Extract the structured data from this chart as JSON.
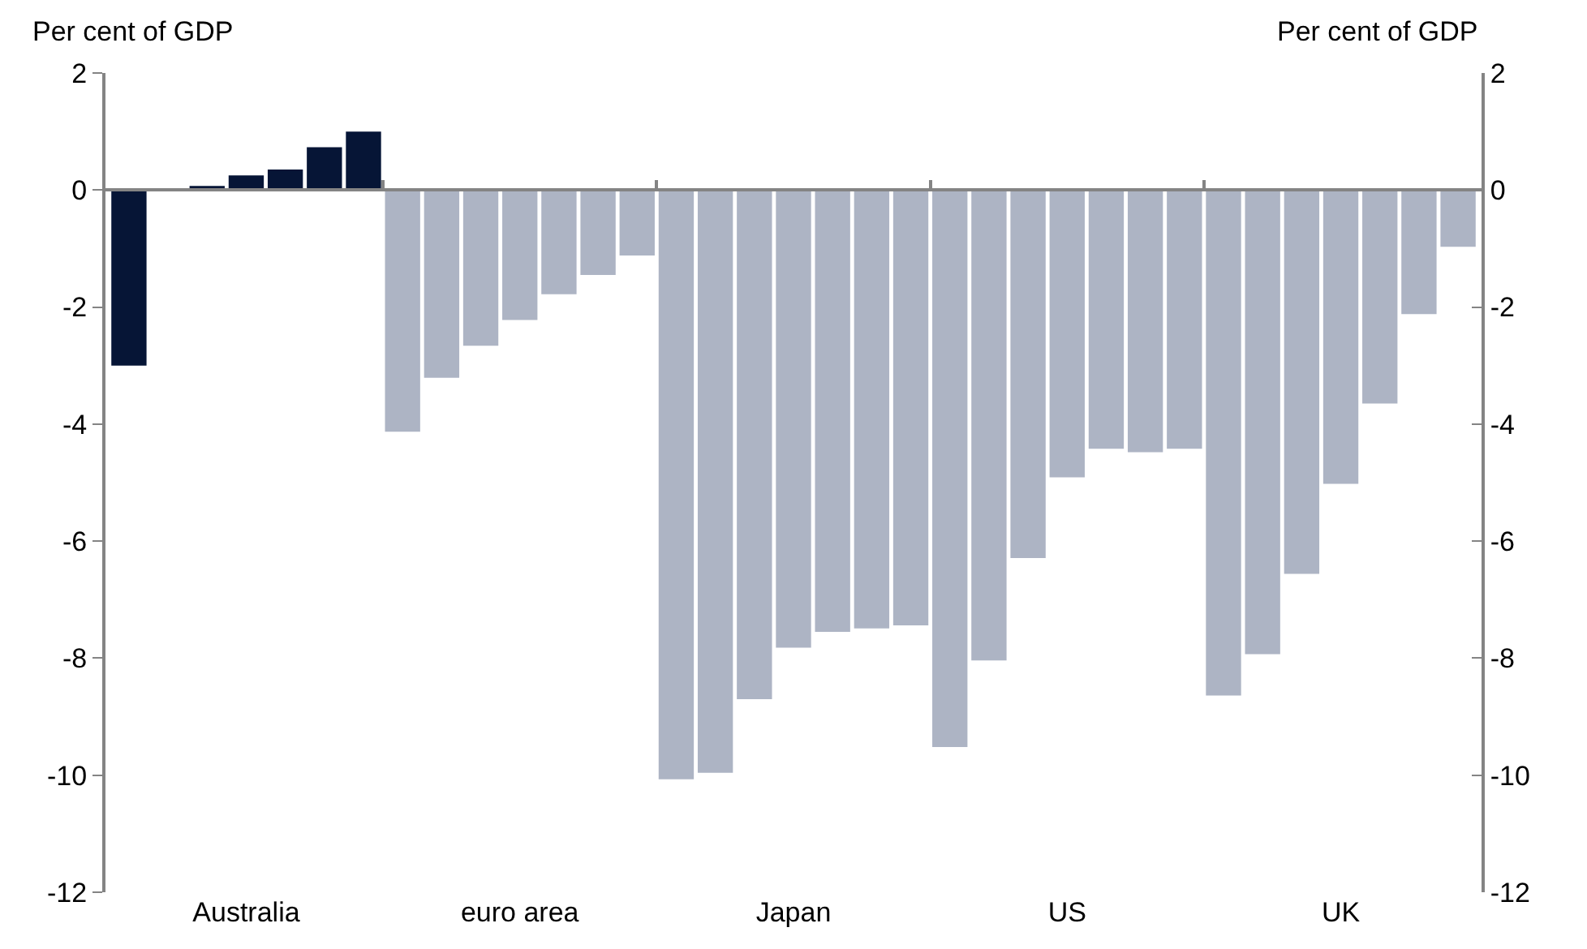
{
  "chart_data": {
    "type": "bar",
    "categories": [
      null,
      null,
      null,
      "Australia",
      null,
      null,
      null,
      null,
      null,
      null,
      "euro area",
      null,
      null,
      null,
      null,
      null,
      null,
      "Japan",
      null,
      null,
      null,
      null,
      null,
      null,
      "US",
      null,
      null,
      null,
      null,
      null,
      null,
      "UK",
      null,
      null,
      null
    ],
    "values": [
      -3.0,
      null,
      0.07,
      0.25,
      0.35,
      0.73,
      1.0,
      -4.13,
      -3.21,
      -2.66,
      -2.22,
      -1.78,
      -1.45,
      -1.12,
      -10.07,
      -9.96,
      -8.7,
      -7.82,
      -7.55,
      -7.49,
      -7.44,
      -9.52,
      -8.04,
      -6.29,
      -4.91,
      -4.42,
      -4.48,
      -4.42,
      -8.64,
      -7.93,
      -6.56,
      -5.02,
      -3.65,
      -2.12,
      -0.97
    ],
    "colors": [
      "#061536",
      "#061536",
      "#061536",
      "#061536",
      "#061536",
      "#061536",
      "#061536",
      "#adb4c4",
      "#adb4c4",
      "#adb4c4",
      "#adb4c4",
      "#adb4c4",
      "#adb4c4",
      "#adb4c4",
      "#adb4c4",
      "#adb4c4",
      "#adb4c4",
      "#adb4c4",
      "#adb4c4",
      "#adb4c4",
      "#adb4c4",
      "#adb4c4",
      "#adb4c4",
      "#adb4c4",
      "#adb4c4",
      "#adb4c4",
      "#adb4c4",
      "#adb4c4",
      "#adb4c4",
      "#adb4c4",
      "#adb4c4",
      "#adb4c4",
      "#adb4c4",
      "#adb4c4",
      "#adb4c4"
    ],
    "ylabel": "Per cent of GDP",
    "y2label": "Per cent of GDP",
    "ylim": [
      -12,
      2
    ],
    "yticks": [
      -12,
      -10,
      -8,
      -6,
      -4,
      -2,
      0,
      2
    ],
    "y2lim": [
      -12,
      2
    ],
    "y2ticks": [
      -12,
      -10,
      -8,
      -6,
      -4,
      -2,
      0,
      2
    ],
    "legend": false
  }
}
